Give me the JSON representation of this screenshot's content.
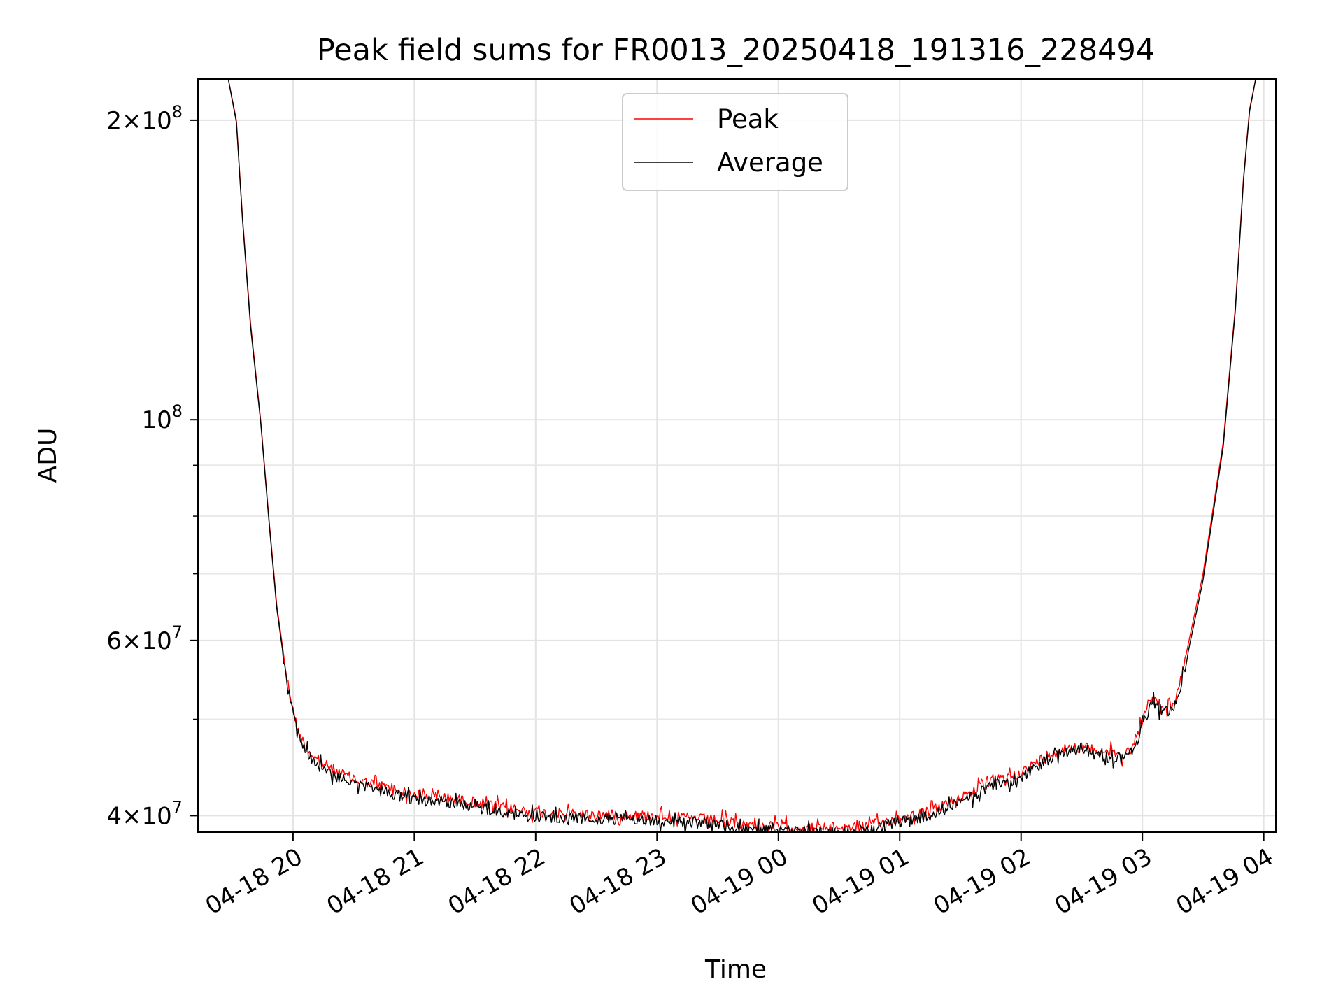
{
  "chart_data": {
    "type": "line",
    "title": "Peak field sums for FR0013_20250418_191316_228494",
    "xlabel": "Time",
    "ylabel": "ADU",
    "yscale": "log",
    "ylim": [
      38500000,
      220000000
    ],
    "xlim": [
      "2025-04-18 19:13",
      "2025-04-19 04:06"
    ],
    "grid": true,
    "legend_position": "top-center",
    "x_ticks": [
      {
        "value": "2025-04-18 20:00",
        "label": "04-18 20"
      },
      {
        "value": "2025-04-18 21:00",
        "label": "04-18 21"
      },
      {
        "value": "2025-04-18 22:00",
        "label": "04-18 22"
      },
      {
        "value": "2025-04-18 23:00",
        "label": "04-18 23"
      },
      {
        "value": "2025-04-19 00:00",
        "label": "04-19 00"
      },
      {
        "value": "2025-04-19 01:00",
        "label": "04-19 01"
      },
      {
        "value": "2025-04-19 02:00",
        "label": "04-19 02"
      },
      {
        "value": "2025-04-19 03:00",
        "label": "04-19 03"
      },
      {
        "value": "2025-04-19 04:00",
        "label": "04-19 04"
      }
    ],
    "y_ticks": [
      {
        "value": 40000000,
        "mantissa": "4",
        "exponent": "7"
      },
      {
        "value": 60000000,
        "mantissa": "6",
        "exponent": "7"
      },
      {
        "value": 100000000,
        "mantissa": "",
        "exponent": "8"
      },
      {
        "value": 200000000,
        "mantissa": "2",
        "exponent": "8"
      }
    ],
    "y_minor_ticks": [
      50000000,
      70000000,
      80000000,
      90000000
    ],
    "series": [
      {
        "name": "Peak",
        "color": "#ff0000",
        "noise": 0.012,
        "x": [
          "2025-04-18 19:13",
          "2025-04-18 19:28",
          "2025-04-18 19:32",
          "2025-04-18 19:35",
          "2025-04-18 19:39",
          "2025-04-18 19:44",
          "2025-04-18 19:48",
          "2025-04-18 19:52",
          "2025-04-18 19:57",
          "2025-04-18 20:02",
          "2025-04-18 20:06",
          "2025-04-18 20:12",
          "2025-04-18 20:20",
          "2025-04-18 20:30",
          "2025-04-18 20:45",
          "2025-04-18 21:00",
          "2025-04-18 21:15",
          "2025-04-18 21:30",
          "2025-04-18 21:45",
          "2025-04-18 22:00",
          "2025-04-18 22:30",
          "2025-04-18 23:00",
          "2025-04-18 23:30",
          "2025-04-18 23:45",
          "2025-04-19 00:00",
          "2025-04-19 00:15",
          "2025-04-19 00:30",
          "2025-04-19 00:45",
          "2025-04-19 01:00",
          "2025-04-19 01:15",
          "2025-04-19 01:30",
          "2025-04-19 01:45",
          "2025-04-19 02:00",
          "2025-04-19 02:15",
          "2025-04-19 02:25",
          "2025-04-19 02:35",
          "2025-04-19 02:50",
          "2025-04-19 02:56",
          "2025-04-19 03:00",
          "2025-04-19 03:05",
          "2025-04-19 03:10",
          "2025-04-19 03:15",
          "2025-04-19 03:20",
          "2025-04-19 03:30",
          "2025-04-19 03:40",
          "2025-04-19 03:46",
          "2025-04-19 03:50",
          "2025-04-19 03:53",
          "2025-04-19 03:56",
          "2025-04-19 04:06"
        ],
        "y": [
          220000000,
          220000000,
          200000000,
          160000000,
          125000000,
          100000000,
          80000000,
          65000000,
          55000000,
          49000000,
          47000000,
          45500000,
          44500000,
          43500000,
          42800000,
          42000000,
          41700000,
          41300000,
          40700000,
          40300000,
          40100000,
          40000000,
          39600000,
          39100000,
          39000000,
          38900000,
          38900000,
          39100000,
          39800000,
          40400000,
          41800000,
          43200000,
          44200000,
          46300000,
          47000000,
          46700000,
          46000000,
          47000000,
          50000000,
          52300000,
          51500000,
          51500000,
          56000000,
          70000000,
          95000000,
          130000000,
          175000000,
          205000000,
          220000000,
          220000000
        ]
      },
      {
        "name": "Average",
        "color": "#000000",
        "noise": 0.013,
        "x": [
          "2025-04-18 19:13",
          "2025-04-18 19:28",
          "2025-04-18 19:32",
          "2025-04-18 19:35",
          "2025-04-18 19:39",
          "2025-04-18 19:44",
          "2025-04-18 19:48",
          "2025-04-18 19:52",
          "2025-04-18 19:57",
          "2025-04-18 20:02",
          "2025-04-18 20:06",
          "2025-04-18 20:12",
          "2025-04-18 20:20",
          "2025-04-18 20:30",
          "2025-04-18 20:45",
          "2025-04-18 21:00",
          "2025-04-18 21:15",
          "2025-04-18 21:30",
          "2025-04-18 21:45",
          "2025-04-18 22:00",
          "2025-04-18 22:30",
          "2025-04-18 23:00",
          "2025-04-18 23:30",
          "2025-04-18 23:45",
          "2025-04-19 00:00",
          "2025-04-19 00:15",
          "2025-04-19 00:30",
          "2025-04-19 00:45",
          "2025-04-19 01:00",
          "2025-04-19 01:15",
          "2025-04-19 01:30",
          "2025-04-19 01:45",
          "2025-04-19 02:00",
          "2025-04-19 02:15",
          "2025-04-19 02:25",
          "2025-04-19 02:35",
          "2025-04-19 02:50",
          "2025-04-19 02:56",
          "2025-04-19 03:00",
          "2025-04-19 03:05",
          "2025-04-19 03:10",
          "2025-04-19 03:15",
          "2025-04-19 03:20",
          "2025-04-19 03:30",
          "2025-04-19 03:40",
          "2025-04-19 03:46",
          "2025-04-19 03:50",
          "2025-04-19 03:53",
          "2025-04-19 03:56",
          "2025-04-19 04:06"
        ],
        "y": [
          220000000,
          220000000,
          199000000,
          159000000,
          124000000,
          99500000,
          79500000,
          64500000,
          54500000,
          48500000,
          46500000,
          45000000,
          44000000,
          43000000,
          42300000,
          41500000,
          41300000,
          40900000,
          40300000,
          39900000,
          39700000,
          39600000,
          39200000,
          38700000,
          38600000,
          38500000,
          38500000,
          38700000,
          39400000,
          40000000,
          41300000,
          42700000,
          43700000,
          45800000,
          46500000,
          46200000,
          45500000,
          46500000,
          49500000,
          51800000,
          51000000,
          51000000,
          55000000,
          69000000,
          94000000,
          129000000,
          174000000,
          204000000,
          220000000,
          220000000
        ]
      }
    ]
  }
}
